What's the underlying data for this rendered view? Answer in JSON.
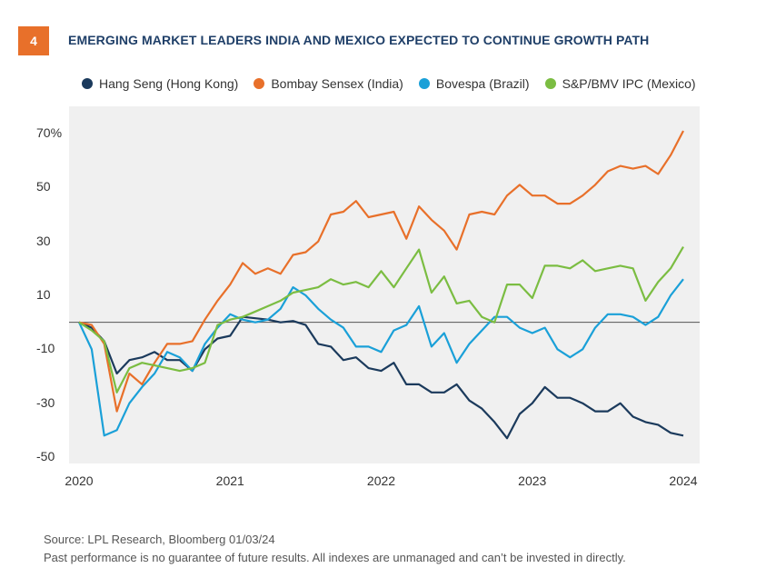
{
  "badge": "4",
  "title": "EMERGING MARKET LEADERS INDIA AND MEXICO EXPECTED TO CONTINUE GROWTH PATH",
  "footer": {
    "source": "Source: LPL Research, Bloomberg 01/03/24",
    "disclaimer": "Past performance is no guarantee of future results. All indexes are unmanaged and can’t be invested in directly."
  },
  "chart_data": {
    "type": "line",
    "title": "EMERGING MARKET LEADERS INDIA AND MEXICO EXPECTED TO CONTINUE GROWTH PATH",
    "x_tick_labels": [
      "2020",
      "2021",
      "2022",
      "2023",
      "2024"
    ],
    "y_tick_labels": [
      "70%",
      "50",
      "30",
      "10",
      "-10",
      "-30",
      "-50"
    ],
    "xlim": [
      2020,
      2024
    ],
    "ylim": [
      -50,
      77
    ],
    "grid": false,
    "legend_position": "top",
    "baseline": 0,
    "series": [
      {
        "name": "Hang Seng (Hong Kong)",
        "color": "#1b3a5c",
        "values": [
          0,
          -2,
          -7,
          -19,
          -14,
          -13,
          -11,
          -14,
          -14,
          -18,
          -10,
          -6,
          -5,
          2,
          1.5,
          1,
          0,
          0.5,
          -1,
          -8,
          -9,
          -14,
          -13,
          -17,
          -18,
          -15,
          -23,
          -23,
          -26,
          -26,
          -23,
          -29,
          -32,
          -37,
          -43,
          -34,
          -30,
          -24,
          -28,
          -28,
          -30,
          -33,
          -33,
          -30,
          -35,
          -37,
          -38,
          -41,
          -42
        ]
      },
      {
        "name": "Bombay Sensex (India)",
        "color": "#e8702a",
        "values": [
          0,
          -1,
          -8,
          -33,
          -19,
          -23,
          -15,
          -8,
          -8,
          -7,
          1,
          8,
          14,
          22,
          18,
          20,
          18,
          25,
          26,
          30,
          40,
          41,
          45,
          39,
          40,
          41,
          31,
          43,
          38,
          34,
          27,
          40,
          41,
          40,
          47,
          51,
          47,
          47,
          44,
          44,
          47,
          51,
          56,
          58,
          57,
          58,
          55,
          62,
          71
        ]
      },
      {
        "name": "Bovespa (Brazil)",
        "color": "#1aa0d8",
        "values": [
          0,
          -10,
          -42,
          -40,
          -30,
          -24,
          -19,
          -11,
          -13,
          -18,
          -8,
          -2,
          3,
          1,
          0,
          1,
          5,
          13,
          10,
          5,
          1,
          -2,
          -9,
          -9,
          -11,
          -3,
          -1,
          6,
          -9,
          -4,
          -15,
          -8,
          -3,
          2,
          2,
          -2,
          -4,
          -2,
          -10,
          -13,
          -10,
          -2,
          3,
          3,
          2,
          -1,
          2,
          10,
          16
        ]
      },
      {
        "name": "S&P/BMV IPC (Mexico)",
        "color": "#7bbd42",
        "values": [
          0,
          -3,
          -7,
          -26,
          -17,
          -15,
          -16,
          -17,
          -18,
          -17,
          -15,
          -1,
          1,
          2,
          4,
          6,
          8,
          11,
          12,
          13,
          16,
          14,
          15,
          13,
          19,
          13,
          20,
          27,
          11,
          17,
          7,
          8,
          2,
          0,
          14,
          14,
          9,
          21,
          21,
          20,
          23,
          19,
          20,
          21,
          20,
          8,
          15,
          20,
          28
        ]
      }
    ]
  }
}
